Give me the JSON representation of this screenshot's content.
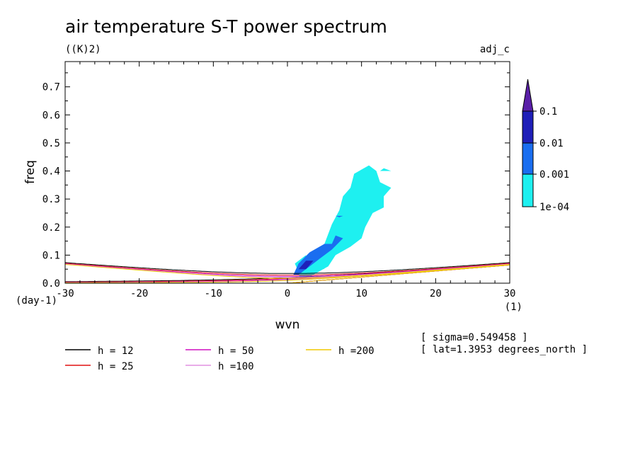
{
  "chart_data": {
    "type": "contour",
    "title": "air temperature S-T power spectrum",
    "units": "((K)2)",
    "dataset": "adj_c",
    "xlabel": "wvn",
    "ylabel": "freq",
    "x_unit": "(1)",
    "y_unit": "(day-1)",
    "xlim": [
      -30,
      30
    ],
    "ylim": [
      0,
      0.79
    ],
    "x_ticks": [
      "-30",
      "-20",
      "-10",
      "0",
      "10",
      "20",
      "30"
    ],
    "y_ticks": [
      "0.0",
      "0.1",
      "0.2",
      "0.3",
      "0.4",
      "0.5",
      "0.6",
      "0.7"
    ],
    "info": [
      "[ sigma=0.549458 ]",
      "[ lat=1.3953 degrees_north ]"
    ],
    "colorbar": {
      "levels": [
        "0.1",
        "0.01",
        "0.001",
        "1e-04"
      ],
      "colors": [
        "#5a1fa8",
        "#1f1fb8",
        "#1a6ef0",
        "#1ef0f0"
      ]
    },
    "dispersion_curves": [
      {
        "name": "h = 12",
        "h": 12,
        "color": "#000000"
      },
      {
        "name": "h = 25",
        "h": 25,
        "color": "#e01010"
      },
      {
        "name": "h = 50",
        "h": 50,
        "color": "#d010c0"
      },
      {
        "name": "h =100",
        "h": 100,
        "color": "#e090e0"
      },
      {
        "name": "h =200",
        "h": 200,
        "color": "#f0c800"
      }
    ],
    "contour_regions": [
      {
        "level": "1e-04",
        "color": "#1ef0f0",
        "points": [
          [
            1.5,
            0.03
          ],
          [
            3,
            0.07
          ],
          [
            5,
            0.14
          ],
          [
            6,
            0.21
          ],
          [
            7,
            0.26
          ],
          [
            7.5,
            0.31
          ],
          [
            8.5,
            0.34
          ],
          [
            9,
            0.39
          ],
          [
            11,
            0.42
          ],
          [
            12,
            0.4
          ],
          [
            12.5,
            0.36
          ],
          [
            14,
            0.34
          ],
          [
            13,
            0.31
          ],
          [
            13,
            0.27
          ],
          [
            11.5,
            0.25
          ],
          [
            10.5,
            0.2
          ],
          [
            10,
            0.16
          ],
          [
            8.5,
            0.13
          ],
          [
            6.5,
            0.1
          ],
          [
            5.5,
            0.06
          ],
          [
            3.5,
            0.03
          ],
          [
            2,
            0.01
          ]
        ]
      },
      {
        "level": "1e-04",
        "color": "#1ef0f0",
        "points": [
          [
            1,
            0.07
          ],
          [
            2.5,
            0.1
          ],
          [
            2.5,
            0.05
          ],
          [
            1.5,
            0.04
          ]
        ]
      },
      {
        "level": "1e-04",
        "color": "#1ef0f0",
        "points": [
          [
            3,
            0.07
          ],
          [
            5,
            0.05
          ],
          [
            4,
            0.09
          ]
        ]
      },
      {
        "level": "1e-04",
        "color": "#1ef0f0",
        "points": [
          [
            12.5,
            0.4
          ],
          [
            14,
            0.4
          ],
          [
            13,
            0.41
          ]
        ]
      },
      {
        "level": "0.001",
        "color": "#1a6ef0",
        "points": [
          [
            0.8,
            0.03
          ],
          [
            1.5,
            0.07
          ],
          [
            3,
            0.11
          ],
          [
            5,
            0.14
          ],
          [
            6,
            0.14
          ],
          [
            6.5,
            0.17
          ],
          [
            7.5,
            0.16
          ],
          [
            6,
            0.12
          ],
          [
            4.5,
            0.09
          ],
          [
            3,
            0.06
          ],
          [
            1.5,
            0.03
          ]
        ]
      },
      {
        "level": "0.001",
        "color": "#1a6ef0",
        "points": [
          [
            6.5,
            0.24
          ],
          [
            7.5,
            0.24
          ],
          [
            7,
            0.235
          ]
        ]
      },
      {
        "level": "0.01",
        "color": "#1f1fb8",
        "points": [
          [
            1.5,
            0.05
          ],
          [
            2.5,
            0.08
          ],
          [
            3.5,
            0.08
          ],
          [
            2.5,
            0.05
          ]
        ]
      }
    ]
  }
}
